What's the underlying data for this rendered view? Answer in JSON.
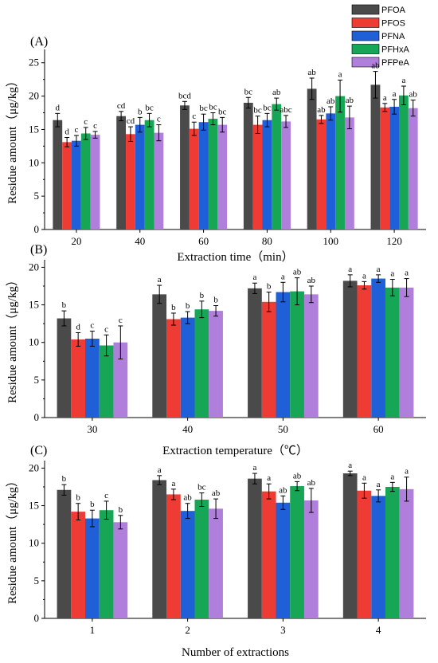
{
  "legend": {
    "entries": [
      {
        "name": "PFOA",
        "color": "#4a4a4a"
      },
      {
        "name": "PFOS",
        "color": "#ee3b33"
      },
      {
        "name": "PFNA",
        "color": "#1f5fd8"
      },
      {
        "name": "PFHxA",
        "color": "#17a655"
      },
      {
        "name": "PFPeA",
        "color": "#b07fdc"
      }
    ]
  },
  "chart_data": [
    {
      "type": "bar",
      "panel_label": "(A)",
      "xlabel": "Extraction time（min）",
      "ylabel": "Residue amount（μg/kg）",
      "ylim": [
        0,
        27
      ],
      "yticks": [
        "0",
        "5",
        "10",
        "15",
        "20",
        "25"
      ],
      "categories": [
        "20",
        "40",
        "60",
        "80",
        "100",
        "120"
      ],
      "series": [
        {
          "name": "PFOA",
          "values": [
            16.4,
            17.0,
            18.6,
            19.0,
            21.1,
            21.7
          ],
          "errors": [
            1.0,
            0.7,
            0.6,
            0.8,
            1.6,
            2.0
          ],
          "labels": [
            "d",
            "cd",
            "bcd",
            "bc",
            "ab",
            "ab"
          ]
        },
        {
          "name": "PFOS",
          "values": [
            13.1,
            14.3,
            15.1,
            15.7,
            16.5,
            18.3
          ],
          "errors": [
            0.7,
            1.1,
            1.0,
            1.3,
            0.6,
            0.6
          ],
          "labels": [
            "d",
            "cd",
            "c",
            "bc",
            "ab",
            "a"
          ]
        },
        {
          "name": "PFNA",
          "values": [
            13.3,
            15.7,
            16.1,
            16.4,
            17.4,
            18.4
          ],
          "errors": [
            0.8,
            1.1,
            1.2,
            1.0,
            1.0,
            1.1
          ],
          "labels": [
            "c",
            "b",
            "bc",
            "bc",
            "ab",
            "a"
          ]
        },
        {
          "name": "PFHxA",
          "values": [
            14.4,
            16.4,
            16.6,
            18.8,
            20.0,
            20.1
          ],
          "errors": [
            0.9,
            1.0,
            0.9,
            0.9,
            2.4,
            1.4
          ],
          "labels": [
            "c",
            "bc",
            "bc",
            "ab",
            "a",
            "a"
          ]
        },
        {
          "name": "PFPeA",
          "values": [
            14.2,
            14.5,
            15.7,
            16.2,
            16.8,
            18.2
          ],
          "errors": [
            0.5,
            1.2,
            1.1,
            0.9,
            1.7,
            1.2
          ],
          "labels": [
            "c",
            "c",
            "bc",
            "abc",
            "ab",
            "ab"
          ]
        }
      ]
    },
    {
      "type": "bar",
      "panel_label": "(B)",
      "xlabel": "Extraction temperature（℃）",
      "ylabel": "Residue amount（μg/kg）",
      "ylim": [
        0,
        21
      ],
      "yticks": [
        "0",
        "5",
        "10",
        "15",
        "20"
      ],
      "categories": [
        "30",
        "40",
        "50",
        "60"
      ],
      "series": [
        {
          "name": "PFOA",
          "values": [
            13.2,
            16.4,
            17.2,
            18.2
          ],
          "errors": [
            1.0,
            1.2,
            0.7,
            0.8
          ],
          "labels": [
            "b",
            "a",
            "a",
            "a"
          ]
        },
        {
          "name": "PFOS",
          "values": [
            10.4,
            13.1,
            15.4,
            17.6
          ],
          "errors": [
            0.9,
            0.8,
            1.3,
            0.5
          ],
          "labels": [
            "d",
            "b",
            "b",
            "a"
          ]
        },
        {
          "name": "PFNA",
          "values": [
            10.5,
            13.3,
            16.7,
            18.5
          ],
          "errors": [
            1.0,
            0.8,
            1.3,
            0.5
          ],
          "labels": [
            "c",
            "b",
            "a",
            "a"
          ]
        },
        {
          "name": "PFHxA",
          "values": [
            9.6,
            14.4,
            16.8,
            17.3
          ],
          "errors": [
            1.4,
            1.1,
            1.8,
            1.1
          ],
          "labels": [
            "c",
            "b",
            "ab",
            "a"
          ]
        },
        {
          "name": "PFPeA",
          "values": [
            10.0,
            14.2,
            16.4,
            17.3
          ],
          "errors": [
            2.2,
            0.7,
            1.1,
            1.2
          ],
          "labels": [
            "c",
            "b",
            "ab",
            "a"
          ]
        }
      ]
    },
    {
      "type": "bar",
      "panel_label": "(C)",
      "xlabel": "Number of extractions",
      "ylabel": "Residue amount（μg/kg）",
      "ylim": [
        0,
        21
      ],
      "yticks": [
        "0",
        "5",
        "10",
        "15",
        "20"
      ],
      "categories": [
        "1",
        "2",
        "3",
        "4"
      ],
      "series": [
        {
          "name": "PFOA",
          "values": [
            17.1,
            18.4,
            18.6,
            19.3
          ],
          "errors": [
            0.7,
            0.6,
            0.7,
            0.3
          ],
          "labels": [
            "b",
            "a",
            "a",
            "a"
          ]
        },
        {
          "name": "PFOS",
          "values": [
            14.2,
            16.5,
            16.9,
            17.0
          ],
          "errors": [
            1.1,
            0.7,
            1.0,
            1.0
          ],
          "labels": [
            "b",
            "a",
            "a",
            "a"
          ]
        },
        {
          "name": "PFNA",
          "values": [
            13.3,
            14.3,
            15.4,
            16.3
          ],
          "errors": [
            1.1,
            1.0,
            0.9,
            0.8
          ],
          "labels": [
            "b",
            "ab",
            "ab",
            "a"
          ]
        },
        {
          "name": "PFHxA",
          "values": [
            14.4,
            15.8,
            17.6,
            17.5
          ],
          "errors": [
            1.2,
            0.9,
            0.6,
            0.6
          ],
          "labels": [
            "c",
            "bc",
            "ab",
            "a"
          ]
        },
        {
          "name": "PFPeA",
          "values": [
            12.8,
            14.6,
            15.7,
            17.2
          ],
          "errors": [
            0.9,
            1.3,
            1.6,
            1.6
          ],
          "labels": [
            "b",
            "ab",
            "ab",
            "a"
          ]
        }
      ]
    }
  ]
}
